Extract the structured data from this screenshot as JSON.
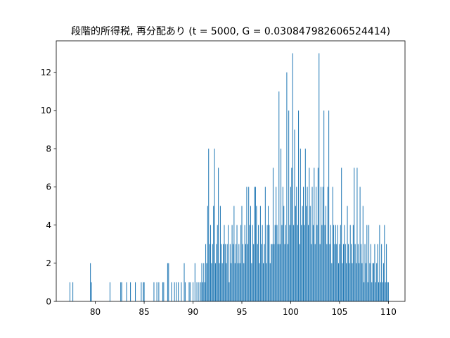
{
  "chart_data": {
    "type": "bar",
    "title": "段階的所得税, 再分配あり (t = 5000, G = 0.030847982606524414)",
    "xlabel": "",
    "ylabel": "",
    "xlim": [
      76.0,
      111.7
    ],
    "ylim": [
      0,
      13.65
    ],
    "xticks": [
      80,
      85,
      90,
      95,
      100,
      105,
      110
    ],
    "xtick_labels": [
      "80",
      "85",
      "90",
      "95",
      "100",
      "105",
      "110"
    ],
    "yticks": [
      0,
      2,
      4,
      6,
      8,
      10,
      12
    ],
    "ytick_labels": [
      "0",
      "2",
      "4",
      "6",
      "8",
      "10",
      "12"
    ],
    "grid": false,
    "bar_color": "#1f77b4",
    "bin_width": 0.0659,
    "series": [
      {
        "values": [
          [
            77.4,
            1
          ],
          [
            77.7,
            1
          ],
          [
            79.5,
            2
          ],
          [
            79.6,
            1
          ],
          [
            81.5,
            1
          ],
          [
            82.6,
            1
          ],
          [
            82.7,
            1
          ],
          [
            83.2,
            1
          ],
          [
            83.6,
            1
          ],
          [
            84.1,
            1
          ],
          [
            84.7,
            1
          ],
          [
            84.9,
            1
          ],
          [
            85.0,
            1
          ],
          [
            86.0,
            1
          ],
          [
            86.3,
            1
          ],
          [
            86.5,
            1
          ],
          [
            86.9,
            1
          ],
          [
            87.0,
            1
          ],
          [
            87.4,
            2
          ],
          [
            87.5,
            2
          ],
          [
            87.8,
            1
          ],
          [
            88.1,
            1
          ],
          [
            88.3,
            1
          ],
          [
            88.5,
            1
          ],
          [
            88.8,
            1
          ],
          [
            89.1,
            2
          ],
          [
            89.2,
            1
          ],
          [
            89.6,
            1
          ],
          [
            89.7,
            1
          ],
          [
            90.0,
            1
          ],
          [
            90.2,
            2
          ],
          [
            90.4,
            1
          ],
          [
            90.6,
            1
          ],
          [
            90.8,
            1
          ],
          [
            90.9,
            2
          ],
          [
            91.0,
            1
          ],
          [
            91.1,
            2
          ],
          [
            91.2,
            1
          ],
          [
            91.3,
            3
          ],
          [
            91.4,
            2
          ],
          [
            91.5,
            5
          ],
          [
            91.6,
            8
          ],
          [
            91.7,
            3
          ],
          [
            91.8,
            4
          ],
          [
            91.9,
            2
          ],
          [
            92.0,
            3
          ],
          [
            92.1,
            5
          ],
          [
            92.2,
            8
          ],
          [
            92.3,
            2
          ],
          [
            92.4,
            3
          ],
          [
            92.5,
            4
          ],
          [
            92.6,
            7
          ],
          [
            92.7,
            2
          ],
          [
            92.8,
            5
          ],
          [
            92.9,
            3
          ],
          [
            93.0,
            2
          ],
          [
            93.1,
            3
          ],
          [
            93.2,
            4
          ],
          [
            93.3,
            3
          ],
          [
            93.4,
            2
          ],
          [
            93.5,
            3
          ],
          [
            93.6,
            4
          ],
          [
            93.7,
            1
          ],
          [
            93.8,
            3
          ],
          [
            93.9,
            2
          ],
          [
            94.0,
            4
          ],
          [
            94.1,
            3
          ],
          [
            94.2,
            5
          ],
          [
            94.3,
            2
          ],
          [
            94.4,
            3
          ],
          [
            94.5,
            4
          ],
          [
            94.6,
            2
          ],
          [
            94.7,
            3
          ],
          [
            94.8,
            2
          ],
          [
            94.9,
            4
          ],
          [
            95.0,
            5
          ],
          [
            95.1,
            3
          ],
          [
            95.2,
            2
          ],
          [
            95.3,
            4
          ],
          [
            95.4,
            3
          ],
          [
            95.5,
            6
          ],
          [
            95.6,
            3
          ],
          [
            95.7,
            6
          ],
          [
            95.8,
            4
          ],
          [
            95.9,
            5
          ],
          [
            96.0,
            2
          ],
          [
            96.1,
            4
          ],
          [
            96.2,
            3
          ],
          [
            96.3,
            6
          ],
          [
            96.4,
            6
          ],
          [
            96.5,
            5
          ],
          [
            96.6,
            3
          ],
          [
            96.7,
            4
          ],
          [
            96.8,
            2
          ],
          [
            96.9,
            5
          ],
          [
            97.0,
            3
          ],
          [
            97.1,
            4
          ],
          [
            97.2,
            2
          ],
          [
            97.3,
            3
          ],
          [
            97.4,
            6
          ],
          [
            97.5,
            2
          ],
          [
            97.6,
            4
          ],
          [
            97.7,
            5
          ],
          [
            97.8,
            4
          ],
          [
            97.9,
            2
          ],
          [
            98.0,
            3
          ],
          [
            98.1,
            3
          ],
          [
            98.2,
            7
          ],
          [
            98.3,
            3
          ],
          [
            98.4,
            4
          ],
          [
            98.5,
            6
          ],
          [
            98.6,
            4
          ],
          [
            98.7,
            3
          ],
          [
            98.8,
            11
          ],
          [
            98.9,
            3
          ],
          [
            99.0,
            8
          ],
          [
            99.1,
            4
          ],
          [
            99.2,
            6
          ],
          [
            99.3,
            5
          ],
          [
            99.4,
            3
          ],
          [
            99.5,
            4
          ],
          [
            99.6,
            12
          ],
          [
            99.7,
            3
          ],
          [
            99.8,
            10
          ],
          [
            99.9,
            4
          ],
          [
            100.0,
            6
          ],
          [
            100.1,
            7
          ],
          [
            100.2,
            13
          ],
          [
            100.3,
            4
          ],
          [
            100.4,
            9
          ],
          [
            100.5,
            5
          ],
          [
            100.6,
            6
          ],
          [
            100.7,
            4
          ],
          [
            100.8,
            10
          ],
          [
            100.9,
            3
          ],
          [
            101.0,
            8
          ],
          [
            101.1,
            4
          ],
          [
            101.2,
            5
          ],
          [
            101.3,
            6
          ],
          [
            101.4,
            4
          ],
          [
            101.5,
            8
          ],
          [
            101.6,
            5
          ],
          [
            101.7,
            6
          ],
          [
            101.8,
            4
          ],
          [
            101.9,
            7
          ],
          [
            102.0,
            5
          ],
          [
            102.1,
            3
          ],
          [
            102.2,
            6
          ],
          [
            102.3,
            4
          ],
          [
            102.4,
            7
          ],
          [
            102.5,
            3
          ],
          [
            102.6,
            6
          ],
          [
            102.7,
            4
          ],
          [
            102.8,
            7
          ],
          [
            102.9,
            13
          ],
          [
            103.0,
            3
          ],
          [
            103.1,
            6
          ],
          [
            103.2,
            4
          ],
          [
            103.3,
            6
          ],
          [
            103.4,
            10
          ],
          [
            103.5,
            4
          ],
          [
            103.6,
            5
          ],
          [
            103.7,
            3
          ],
          [
            103.8,
            6
          ],
          [
            103.9,
            10
          ],
          [
            104.0,
            3
          ],
          [
            104.1,
            4
          ],
          [
            104.2,
            2
          ],
          [
            104.3,
            6
          ],
          [
            104.4,
            4
          ],
          [
            104.5,
            3
          ],
          [
            104.6,
            4
          ],
          [
            104.7,
            3
          ],
          [
            104.8,
            4
          ],
          [
            104.9,
            2
          ],
          [
            105.0,
            3
          ],
          [
            105.1,
            4
          ],
          [
            105.2,
            7
          ],
          [
            105.3,
            2
          ],
          [
            105.4,
            3
          ],
          [
            105.5,
            4
          ],
          [
            105.6,
            3
          ],
          [
            105.7,
            2
          ],
          [
            105.8,
            5
          ],
          [
            105.9,
            3
          ],
          [
            106.0,
            2
          ],
          [
            106.1,
            4
          ],
          [
            106.2,
            3
          ],
          [
            106.3,
            2
          ],
          [
            106.4,
            4
          ],
          [
            106.5,
            7
          ],
          [
            106.6,
            3
          ],
          [
            106.7,
            2
          ],
          [
            106.8,
            7
          ],
          [
            106.9,
            3
          ],
          [
            107.0,
            2
          ],
          [
            107.1,
            6
          ],
          [
            107.2,
            3
          ],
          [
            107.3,
            2
          ],
          [
            107.4,
            5
          ],
          [
            107.5,
            1
          ],
          [
            107.6,
            3
          ],
          [
            107.7,
            2
          ],
          [
            107.8,
            4
          ],
          [
            107.9,
            1
          ],
          [
            108.0,
            4
          ],
          [
            108.1,
            2
          ],
          [
            108.2,
            3
          ],
          [
            108.3,
            1
          ],
          [
            108.4,
            2
          ],
          [
            108.5,
            2
          ],
          [
            108.6,
            3
          ],
          [
            108.7,
            1
          ],
          [
            108.8,
            2
          ],
          [
            108.9,
            3
          ],
          [
            109.0,
            1
          ],
          [
            109.1,
            4
          ],
          [
            109.2,
            1
          ],
          [
            109.3,
            3
          ],
          [
            109.4,
            1
          ],
          [
            109.5,
            2
          ],
          [
            109.6,
            4
          ],
          [
            109.7,
            1
          ],
          [
            109.8,
            3
          ],
          [
            109.9,
            1
          ],
          [
            110.0,
            1
          ]
        ]
      }
    ]
  }
}
